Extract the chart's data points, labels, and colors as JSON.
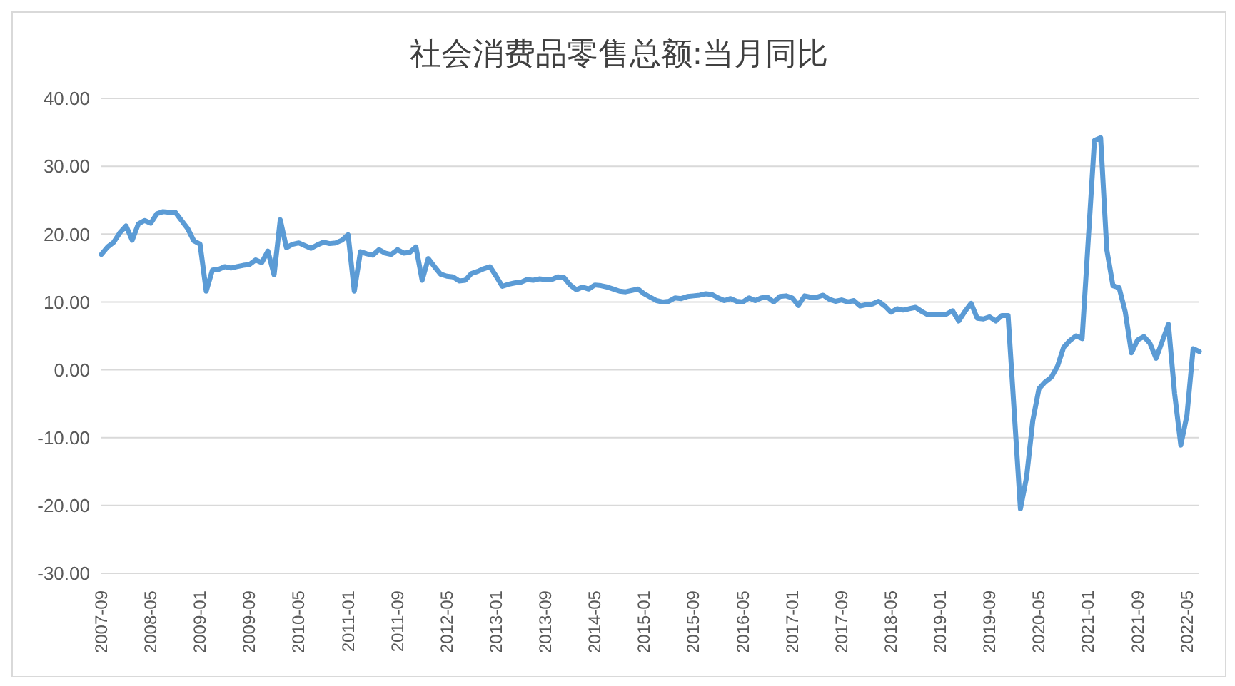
{
  "chart_data": {
    "type": "line",
    "title": "社会消费品零售总额:当月同比",
    "categories": [
      "2007-09",
      null,
      null,
      null,
      null,
      null,
      null,
      null,
      "2008-05",
      null,
      null,
      null,
      null,
      null,
      null,
      null,
      "2009-01",
      null,
      null,
      null,
      null,
      null,
      null,
      null,
      "2009-09",
      null,
      null,
      null,
      null,
      null,
      null,
      null,
      "2010-05",
      null,
      null,
      null,
      null,
      null,
      null,
      null,
      "2011-01",
      null,
      null,
      null,
      null,
      null,
      null,
      null,
      "2011-09",
      null,
      null,
      null,
      null,
      null,
      null,
      null,
      "2012-05",
      null,
      null,
      null,
      null,
      null,
      null,
      null,
      "2013-01",
      null,
      null,
      null,
      null,
      null,
      null,
      null,
      "2013-09",
      null,
      null,
      null,
      null,
      null,
      null,
      null,
      "2014-05",
      null,
      null,
      null,
      null,
      null,
      null,
      null,
      "2015-01",
      null,
      null,
      null,
      null,
      null,
      null,
      null,
      "2015-09",
      null,
      null,
      null,
      null,
      null,
      null,
      null,
      "2016-05",
      null,
      null,
      null,
      null,
      null,
      null,
      null,
      "2017-01",
      null,
      null,
      null,
      null,
      null,
      null,
      null,
      "2017-09",
      null,
      null,
      null,
      null,
      null,
      null,
      null,
      "2018-05",
      null,
      null,
      null,
      null,
      null,
      null,
      null,
      "2019-01",
      null,
      null,
      null,
      null,
      null,
      null,
      null,
      "2019-09",
      null,
      null,
      null,
      null,
      null,
      null,
      null,
      "2020-05",
      null,
      null,
      null,
      null,
      null,
      null,
      null,
      "2021-01",
      null,
      null,
      null,
      null,
      null,
      null,
      null,
      "2021-09",
      null,
      null,
      null,
      null,
      null,
      null,
      null,
      "2022-05",
      null,
      null
    ],
    "series": [
      {
        "color": "#5b9bd5",
        "values": [
          17.0,
          18.1,
          18.8,
          20.2,
          21.2,
          19.1,
          21.5,
          22.0,
          21.6,
          23.0,
          23.3,
          23.2,
          23.2,
          22.0,
          20.8,
          19.0,
          18.5,
          11.6,
          14.7,
          14.8,
          15.2,
          15.0,
          15.2,
          15.4,
          15.5,
          16.2,
          15.8,
          17.5,
          14.0,
          22.1,
          18.0,
          18.5,
          18.7,
          18.3,
          17.9,
          18.4,
          18.8,
          18.6,
          18.7,
          19.1,
          19.9,
          11.6,
          17.4,
          17.1,
          16.9,
          17.7,
          17.2,
          17.0,
          17.7,
          17.2,
          17.3,
          18.1,
          13.2,
          16.4,
          15.2,
          14.1,
          13.8,
          13.7,
          13.1,
          13.2,
          14.2,
          14.5,
          14.9,
          15.2,
          13.8,
          12.3,
          12.6,
          12.8,
          12.9,
          13.3,
          13.2,
          13.4,
          13.3,
          13.3,
          13.7,
          13.6,
          12.5,
          11.8,
          12.2,
          11.9,
          12.5,
          12.4,
          12.2,
          11.9,
          11.6,
          11.5,
          11.7,
          11.9,
          11.2,
          10.7,
          10.2,
          10.0,
          10.1,
          10.6,
          10.5,
          10.8,
          10.9,
          11.0,
          11.2,
          11.1,
          10.6,
          10.2,
          10.5,
          10.1,
          10.0,
          10.6,
          10.2,
          10.6,
          10.7,
          10.0,
          10.8,
          10.9,
          10.6,
          9.5,
          10.9,
          10.7,
          10.7,
          11.0,
          10.4,
          10.1,
          10.3,
          10.0,
          10.2,
          9.4,
          9.6,
          9.7,
          10.1,
          9.4,
          8.5,
          9.0,
          8.8,
          9.0,
          9.2,
          8.6,
          8.1,
          8.2,
          8.2,
          8.2,
          8.7,
          7.2,
          8.6,
          9.8,
          7.6,
          7.5,
          7.8,
          7.2,
          8.0,
          8.0,
          -6.3,
          -20.5,
          -15.8,
          -7.5,
          -2.8,
          -1.8,
          -1.1,
          0.5,
          3.3,
          4.3,
          5.0,
          4.6,
          19.2,
          33.8,
          34.2,
          17.7,
          12.4,
          12.1,
          8.5,
          2.5,
          4.4,
          4.9,
          3.9,
          1.7,
          4.2,
          6.7,
          -3.5,
          -11.1,
          -6.7,
          3.1,
          2.7
        ]
      }
    ],
    "ylim": [
      -30,
      40
    ],
    "yticks": [
      {
        "value": -30,
        "label": "-30.00"
      },
      {
        "value": -20,
        "label": "-20.00"
      },
      {
        "value": -10,
        "label": "-10.00"
      },
      {
        "value": 0,
        "label": "0.00"
      },
      {
        "value": 10,
        "label": "10.00"
      },
      {
        "value": 20,
        "label": "20.00"
      },
      {
        "value": 30,
        "label": "30.00"
      },
      {
        "value": 40,
        "label": "40.00"
      }
    ],
    "grid": "y",
    "legend": false,
    "marker": "none",
    "line_style": "solid"
  }
}
